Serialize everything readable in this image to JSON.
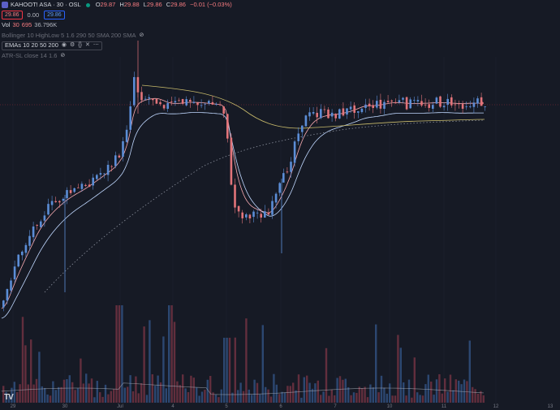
{
  "symbol": {
    "title": "KAHOOT! ASA · 30 · OSL",
    "icon": "kahoot-logo-icon",
    "open_label": "O",
    "open": "29.87",
    "high_label": "H",
    "high": "29.88",
    "low_label": "L",
    "low": "29.86",
    "close_label": "C",
    "close": "29.86",
    "change": "−0.01 (−0.03%)"
  },
  "trade": {
    "sell": "29.86",
    "spread": "0.00",
    "buy": "29.86"
  },
  "volume": {
    "label": "Vol",
    "period": "30",
    "value": "695",
    "ma": "36.796K"
  },
  "indicators": [
    {
      "label": "Bollinger 10 HighLow 5 1.6 290 50 SMA 200 SMA",
      "dim": true
    },
    {
      "label": "EMAs 10 20 50 200",
      "dim": false
    },
    {
      "label": "ATR-SL close 14 1.6",
      "dim": true
    }
  ],
  "x_axis": {
    "labels": [
      "29",
      "30",
      "Jul",
      "4",
      "5",
      "6",
      "7",
      "10",
      "11",
      "12",
      "13"
    ]
  },
  "colors": {
    "background": "#161a25",
    "up": "#5b8dd6",
    "down": "#e2747a",
    "ema_fast": "#f6a9b0",
    "ema_mid": "#c0d8ff",
    "ema_slow": "#c9bb6b",
    "ema_long": "#8a8f9c"
  },
  "chart_data": {
    "type": "candlestick",
    "series": [
      {
        "name": "EMAs 10 20 50 200"
      },
      {
        "name": "Vol"
      }
    ],
    "last_price": 29.86,
    "x_labels": [
      "29",
      "30",
      "Jul",
      "4",
      "5",
      "6",
      "7",
      "10",
      "11",
      "12",
      "13"
    ]
  }
}
